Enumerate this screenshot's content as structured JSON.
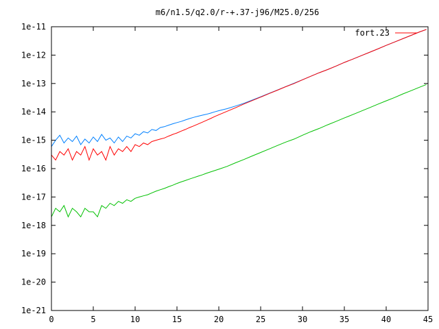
{
  "chart_data": {
    "type": "line",
    "title": "m6/n1.5/q2.0/r-+.37-j96/M25.0/256",
    "xlabel": "",
    "ylabel": "",
    "xlim": [
      0,
      45
    ],
    "ylim": [
      1e-21,
      1e-11
    ],
    "y_scale": "log",
    "grid": false,
    "legend_position": "top-right",
    "x_ticks": [
      "0",
      "5",
      "10",
      "15",
      "20",
      "25",
      "30",
      "35",
      "40",
      "45"
    ],
    "y_ticks": [
      "1e-21",
      "1e-20",
      "1e-19",
      "1e-18",
      "1e-17",
      "1e-16",
      "1e-15",
      "1e-14",
      "1e-13",
      "1e-12",
      "1e-11"
    ],
    "colors": {
      "red": "#ff0000",
      "blue": "#0080ff",
      "green": "#00c000"
    },
    "series": [
      {
        "name": "fort.23",
        "color": "#ff0000",
        "x": [
          0,
          0.5,
          1,
          1.5,
          2,
          2.5,
          3,
          3.5,
          4,
          4.5,
          5,
          5.5,
          6,
          6.5,
          7,
          7.5,
          8,
          8.5,
          9,
          9.5,
          10,
          10.5,
          11,
          11.5,
          12,
          12.5,
          13,
          13.5,
          14,
          14.5,
          15,
          15.5,
          16,
          16.5,
          17,
          17.5,
          18,
          18.5,
          19,
          19.5,
          20,
          21,
          22,
          23,
          24,
          25,
          26,
          27,
          28,
          29,
          30,
          31,
          32,
          33,
          34,
          35,
          36,
          37,
          38,
          39,
          40,
          41,
          42,
          43,
          44,
          44.8
        ],
        "y": [
          3e-16,
          2e-16,
          4e-16,
          3e-16,
          5e-16,
          2e-16,
          4e-16,
          3e-16,
          6e-16,
          2e-16,
          5e-16,
          3e-16,
          4e-16,
          2e-16,
          6e-16,
          3e-16,
          5e-16,
          4e-16,
          6e-16,
          4e-16,
          7e-16,
          6e-16,
          8e-16,
          7e-16,
          9e-16,
          1e-15,
          1.1e-15,
          1.2e-15,
          1.4e-15,
          1.6e-15,
          1.8e-15,
          2.1e-15,
          2.4e-15,
          2.8e-15,
          3.2e-15,
          3.7e-15,
          4.3e-15,
          5e-15,
          5.8e-15,
          6.8e-15,
          7.9e-15,
          1.05e-14,
          1.4e-14,
          1.9e-14,
          2.5e-14,
          3.3e-14,
          4.4e-14,
          5.8e-14,
          7.7e-14,
          1e-13,
          1.35e-13,
          1.8e-13,
          2.4e-13,
          3.1e-13,
          4.1e-13,
          5.5e-13,
          7.2e-13,
          9.5e-13,
          1.25e-12,
          1.65e-12,
          2.2e-12,
          2.9e-12,
          3.8e-12,
          5e-12,
          6.6e-12,
          8e-12
        ]
      },
      {
        "name": "",
        "color": "#0080ff",
        "x": [
          0,
          0.5,
          1,
          1.5,
          2,
          2.5,
          3,
          3.5,
          4,
          4.5,
          5,
          5.5,
          6,
          6.5,
          7,
          7.5,
          8,
          8.5,
          9,
          9.5,
          10,
          10.5,
          11,
          11.5,
          12,
          12.5,
          13,
          13.5,
          14,
          14.5,
          15,
          15.5,
          16,
          16.5,
          17,
          17.5,
          18,
          18.5,
          19,
          19.5,
          20,
          21,
          22,
          23,
          24,
          25,
          26,
          27,
          28,
          29,
          30,
          31,
          32,
          33,
          34,
          35,
          36,
          37,
          38,
          39,
          40,
          41,
          42,
          43,
          44,
          44.8
        ],
        "y": [
          6e-16,
          1e-15,
          1.5e-15,
          8e-16,
          1.2e-15,
          9e-16,
          1.4e-15,
          7e-16,
          1.1e-15,
          8e-16,
          1.3e-15,
          9e-16,
          1.6e-15,
          1e-15,
          1.2e-15,
          8e-16,
          1.3e-15,
          9e-16,
          1.4e-15,
          1.2e-15,
          1.7e-15,
          1.5e-15,
          2e-15,
          1.8e-15,
          2.4e-15,
          2.2e-15,
          2.8e-15,
          3e-15,
          3.4e-15,
          3.8e-15,
          4.2e-15,
          4.6e-15,
          5.2e-15,
          5.8e-15,
          6.4e-15,
          7e-15,
          7.6e-15,
          8.2e-15,
          9e-15,
          1e-14,
          1.1e-14,
          1.3e-14,
          1.6e-14,
          2e-14,
          2.6e-14,
          3.4e-14,
          4.5e-14,
          5.9e-14,
          7.8e-14,
          1.02e-13,
          1.36e-13,
          1.8e-13,
          2.4e-13,
          3.1e-13,
          4.1e-13,
          5.5e-13,
          7.2e-13,
          9.5e-13,
          1.25e-12,
          1.65e-12,
          2.2e-12,
          2.9e-12,
          3.8e-12,
          5e-12,
          6.6e-12,
          8e-12
        ]
      },
      {
        "name": "",
        "color": "#00c000",
        "x": [
          0,
          0.5,
          1,
          1.5,
          2,
          2.5,
          3,
          3.5,
          4,
          4.5,
          5,
          5.5,
          6,
          6.5,
          7,
          7.5,
          8,
          8.5,
          9,
          9.5,
          10,
          10.5,
          11,
          11.5,
          12,
          12.5,
          13,
          13.5,
          14,
          14.5,
          15,
          15.5,
          16,
          16.5,
          17,
          17.5,
          18,
          18.5,
          19,
          19.5,
          20,
          21,
          22,
          23,
          24,
          25,
          26,
          27,
          28,
          29,
          30,
          31,
          32,
          33,
          34,
          35,
          36,
          37,
          38,
          39,
          40,
          41,
          42,
          43,
          44,
          44.8
        ],
        "y": [
          2e-18,
          4e-18,
          3e-18,
          5e-18,
          2e-18,
          4e-18,
          3e-18,
          2e-18,
          4e-18,
          3e-18,
          3e-18,
          2e-18,
          5e-18,
          4e-18,
          6e-18,
          5e-18,
          7e-18,
          6e-18,
          8e-18,
          7e-18,
          9e-18,
          1e-17,
          1.1e-17,
          1.2e-17,
          1.4e-17,
          1.6e-17,
          1.8e-17,
          2e-17,
          2.3e-17,
          2.6e-17,
          3e-17,
          3.4e-17,
          3.8e-17,
          4.3e-17,
          4.8e-17,
          5.4e-17,
          6e-17,
          6.8e-17,
          7.6e-17,
          8.5e-17,
          9.5e-17,
          1.2e-16,
          1.6e-16,
          2.1e-16,
          2.8e-16,
          3.7e-16,
          4.9e-16,
          6.5e-16,
          8.6e-16,
          1.1e-15,
          1.5e-15,
          2e-15,
          2.6e-15,
          3.5e-15,
          4.6e-15,
          6.1e-15,
          8e-15,
          1.06e-14,
          1.4e-14,
          1.85e-14,
          2.45e-14,
          3.2e-14,
          4.3e-14,
          5.6e-14,
          7.4e-14,
          9.2e-14
        ]
      }
    ]
  }
}
